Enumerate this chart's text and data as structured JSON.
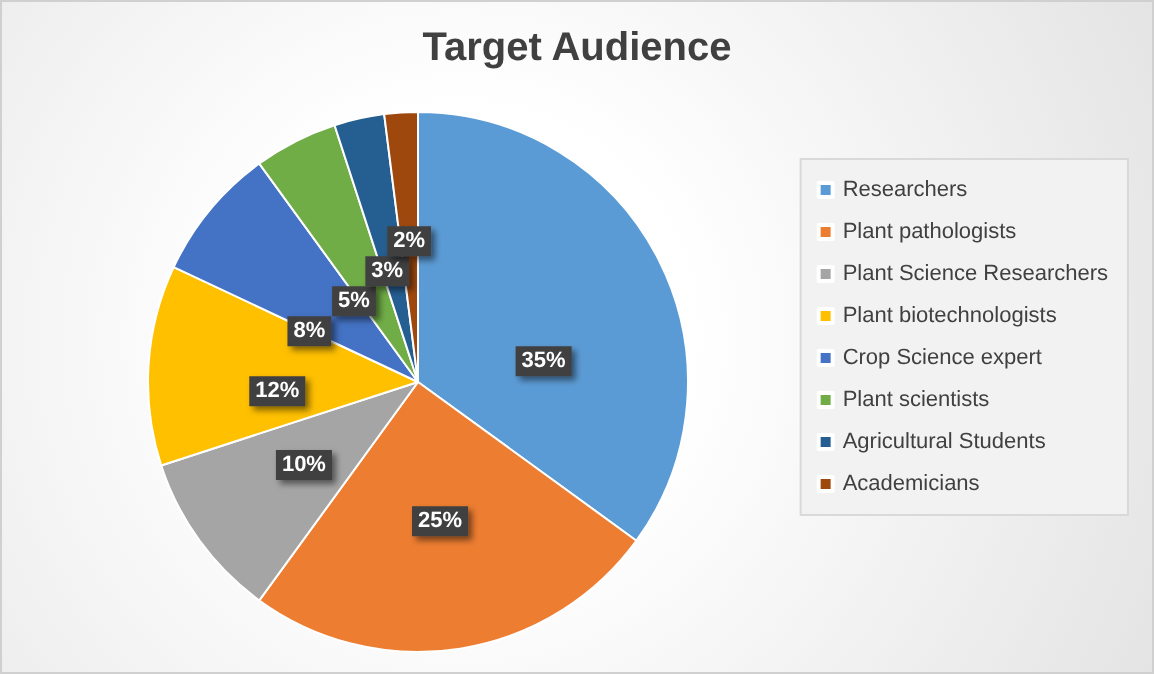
{
  "chart_data": {
    "type": "pie",
    "title": "Target Audience",
    "categories": [
      "Researchers",
      "Plant pathologists",
      "Plant Science Researchers",
      "Plant biotechnologists",
      "Crop Science expert",
      "Plant scientists",
      "Agricultural Students",
      "Academicians"
    ],
    "values": [
      35,
      25,
      10,
      12,
      8,
      5,
      3,
      2
    ],
    "value_labels": [
      "35%",
      "25%",
      "10%",
      "12%",
      "8%",
      "5%",
      "3%",
      "2%"
    ],
    "colors": [
      "#5b9bd5",
      "#ed7d31",
      "#a5a5a5",
      "#ffc000",
      "#4472c4",
      "#70ad47",
      "#255e91",
      "#9e480e"
    ],
    "legend": "right"
  }
}
